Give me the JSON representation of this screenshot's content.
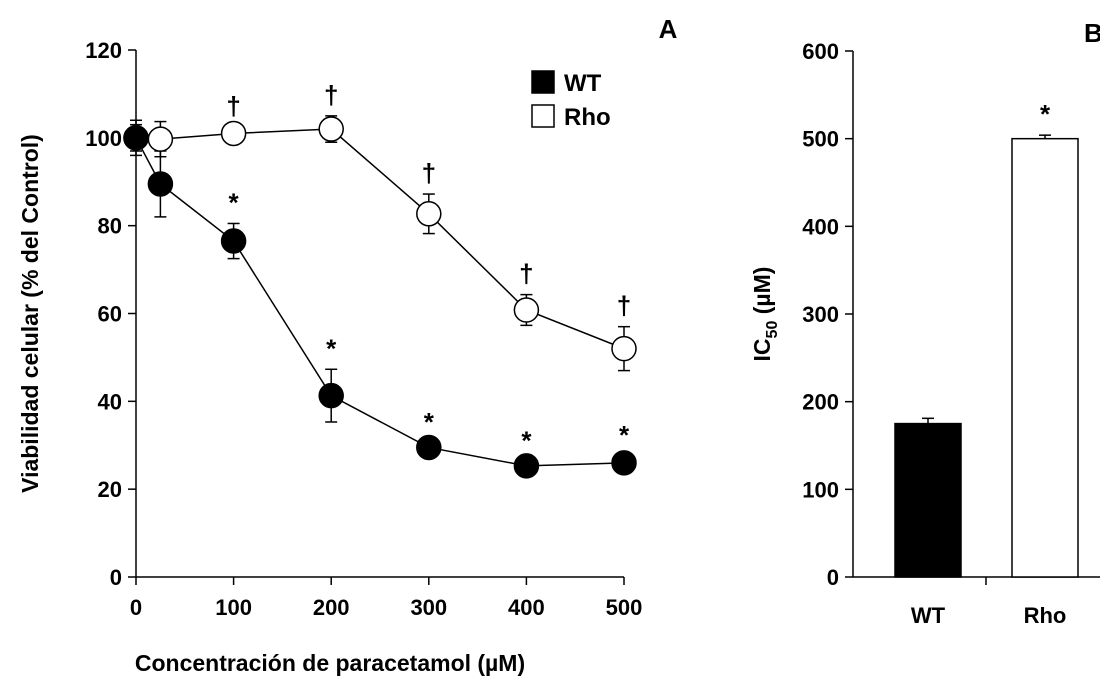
{
  "chart_data": [
    {
      "type": "line",
      "panel_label": "A",
      "xlabel": "Concentración de paracetamol (µM)",
      "ylabel": "Viabilidad celular (% del  Control)",
      "xlim": [
        0,
        500
      ],
      "ylim": [
        0,
        120
      ],
      "xticks": [
        0,
        100,
        200,
        300,
        400,
        500
      ],
      "yticks": [
        0,
        20,
        40,
        60,
        80,
        100,
        120
      ],
      "legend_position": "top-right",
      "series": [
        {
          "name": "WT",
          "marker_fill": "#000000",
          "x": [
            0,
            25,
            100,
            200,
            300,
            400,
            500
          ],
          "y": [
            100,
            89.5,
            76.5,
            41.3,
            29.5,
            25.3,
            26
          ],
          "err": [
            4,
            7.5,
            4,
            6,
            1,
            1,
            1.5
          ],
          "significance": [
            "",
            "",
            "*",
            "*",
            "*",
            "*",
            "*"
          ]
        },
        {
          "name": "Rho",
          "marker_fill": "#ffffff",
          "x": [
            0,
            25,
            100,
            200,
            300,
            400,
            500
          ],
          "y": [
            100,
            99.7,
            101,
            102,
            82.7,
            60.8,
            52
          ],
          "err": [
            3,
            4,
            1.5,
            3,
            4.5,
            3.5,
            5
          ],
          "significance": [
            "",
            "",
            "†",
            "†",
            "†",
            "†",
            "†"
          ]
        }
      ]
    },
    {
      "type": "bar",
      "panel_label": "B",
      "ylabel_main": "IC",
      "ylabel_sub": "50",
      "ylabel_unit": " (µM)",
      "ylim": [
        0,
        600
      ],
      "yticks": [
        0,
        100,
        200,
        300,
        400,
        500,
        600
      ],
      "categories": [
        "WT",
        "Rho"
      ],
      "values": [
        175,
        500
      ],
      "err": [
        6,
        4
      ],
      "fills": [
        "#000000",
        "#ffffff"
      ],
      "significance": [
        "",
        "*"
      ]
    }
  ]
}
